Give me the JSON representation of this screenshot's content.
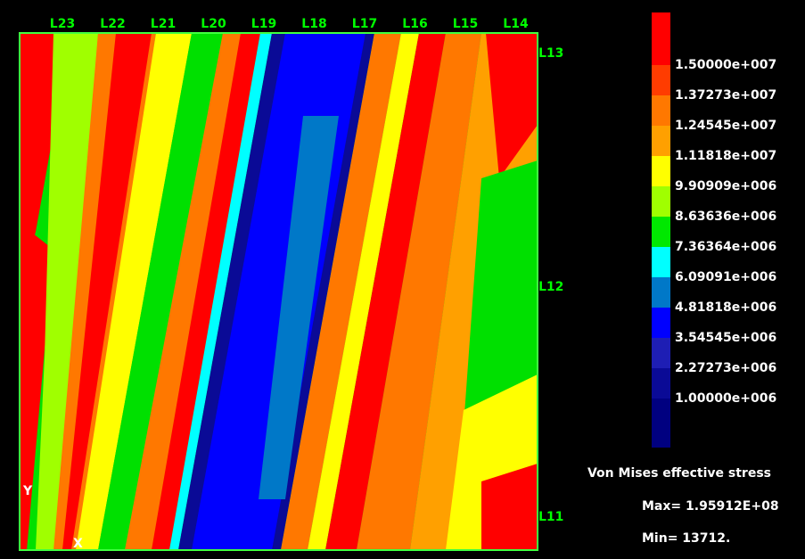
{
  "plot": {
    "top_labels": [
      "L23",
      "L22",
      "L21",
      "L20",
      "L19",
      "L18",
      "L17",
      "L16",
      "L15",
      "L14"
    ],
    "side_labels": [
      "L13",
      "L12",
      "L11"
    ],
    "axis_y": "Y",
    "axis_x": "X"
  },
  "legend": {
    "levels": [
      {
        "label": "1.50000e+007",
        "color": "#ff0000"
      },
      {
        "label": "1.37273e+007",
        "color": "#ff3c00"
      },
      {
        "label": "1.24545e+007",
        "color": "#ff7800"
      },
      {
        "label": "1.11818e+007",
        "color": "#ffa000"
      },
      {
        "label": "9.90909e+006",
        "color": "#ffff00"
      },
      {
        "label": "8.63636e+006",
        "color": "#a0ff00"
      },
      {
        "label": "7.36364e+006",
        "color": "#00e800"
      },
      {
        "label": "6.09091e+006",
        "color": "#00ffff"
      },
      {
        "label": "4.81818e+006",
        "color": "#0078c8"
      },
      {
        "label": "3.54545e+006",
        "color": "#0000ff"
      },
      {
        "label": "2.27273e+006",
        "color": "#1e1eb4"
      },
      {
        "label": "1.00000e+006",
        "color": "#0a0a96"
      }
    ],
    "bottom_color": "#000080",
    "title": "Von Mises effective stress",
    "max": "Max= 1.95912E+08",
    "min": "Min= 13712."
  }
}
